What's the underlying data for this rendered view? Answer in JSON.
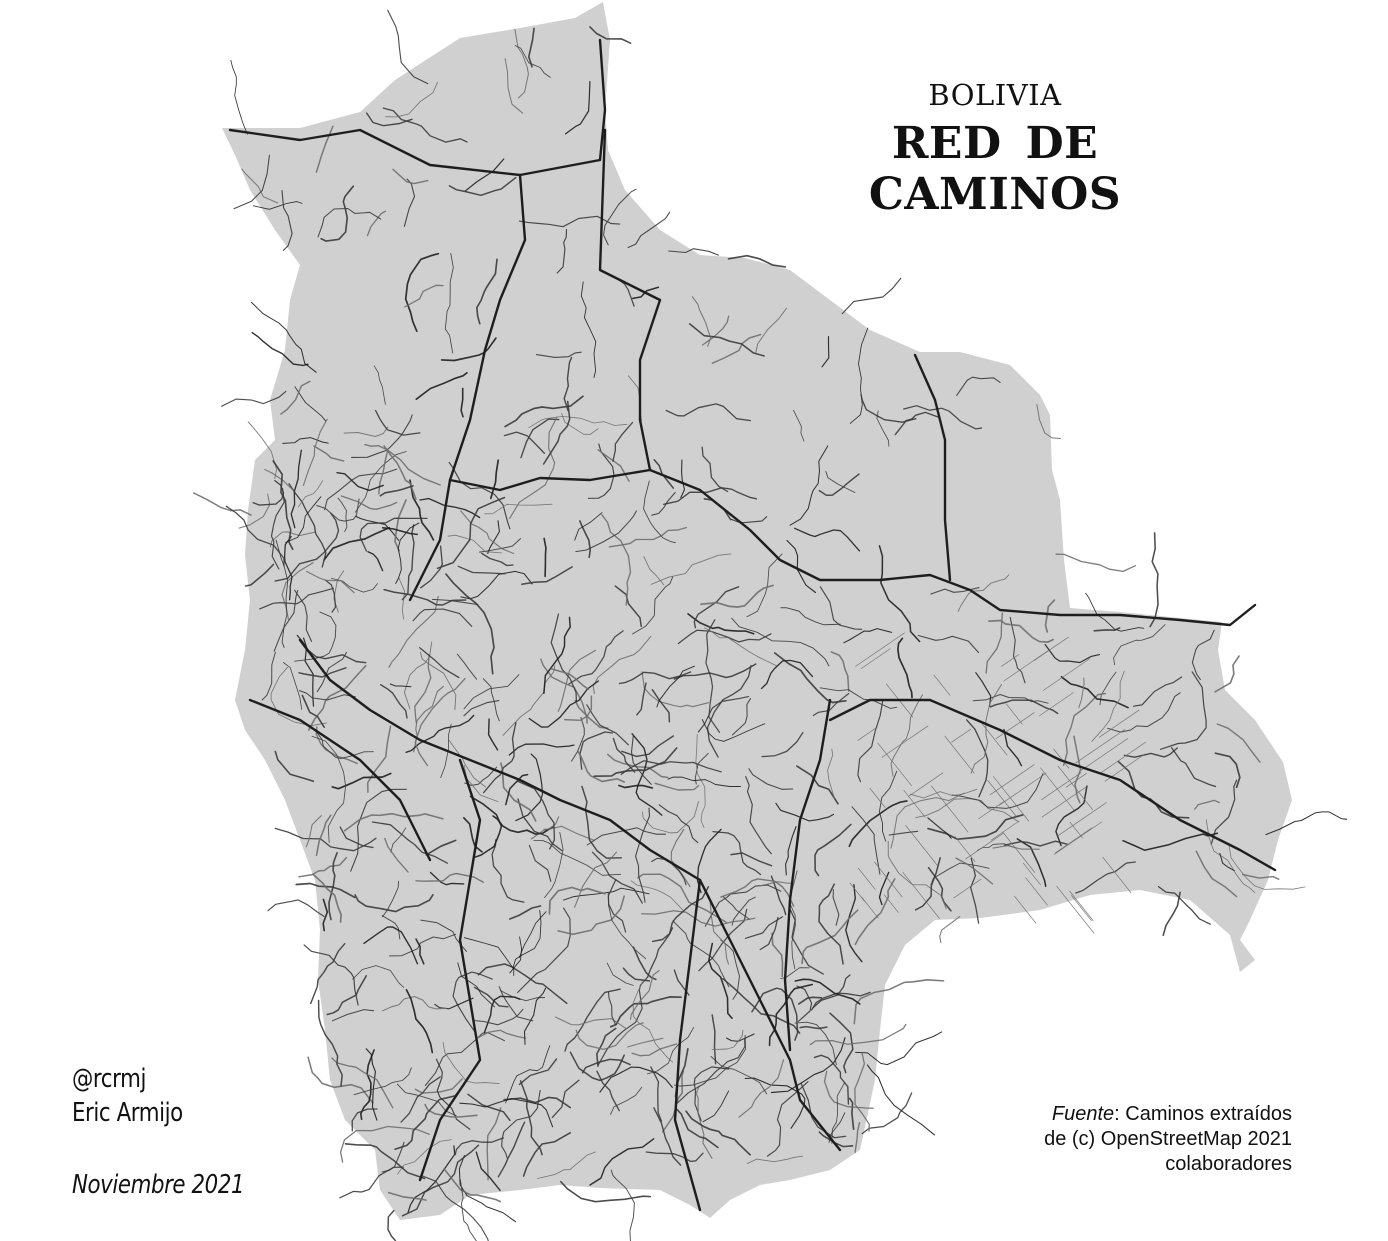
{
  "map": {
    "country": "BOLIVIA",
    "title": "RED DE CAMINOS",
    "colors": {
      "land": "#d0d0d0",
      "road_primary": "#1e1e1e",
      "road_secondary": "#3a3a3a",
      "road_minor": "#6e6e6e",
      "background": "#ffffff"
    }
  },
  "credits": {
    "handle": "@rcrmj",
    "author": "Eric Armijo",
    "date": "Noviembre 2021"
  },
  "source": {
    "label": "Fuente",
    "text": ": Caminos extraídos de (c) OpenStreetMap 2021 colaboradores"
  }
}
